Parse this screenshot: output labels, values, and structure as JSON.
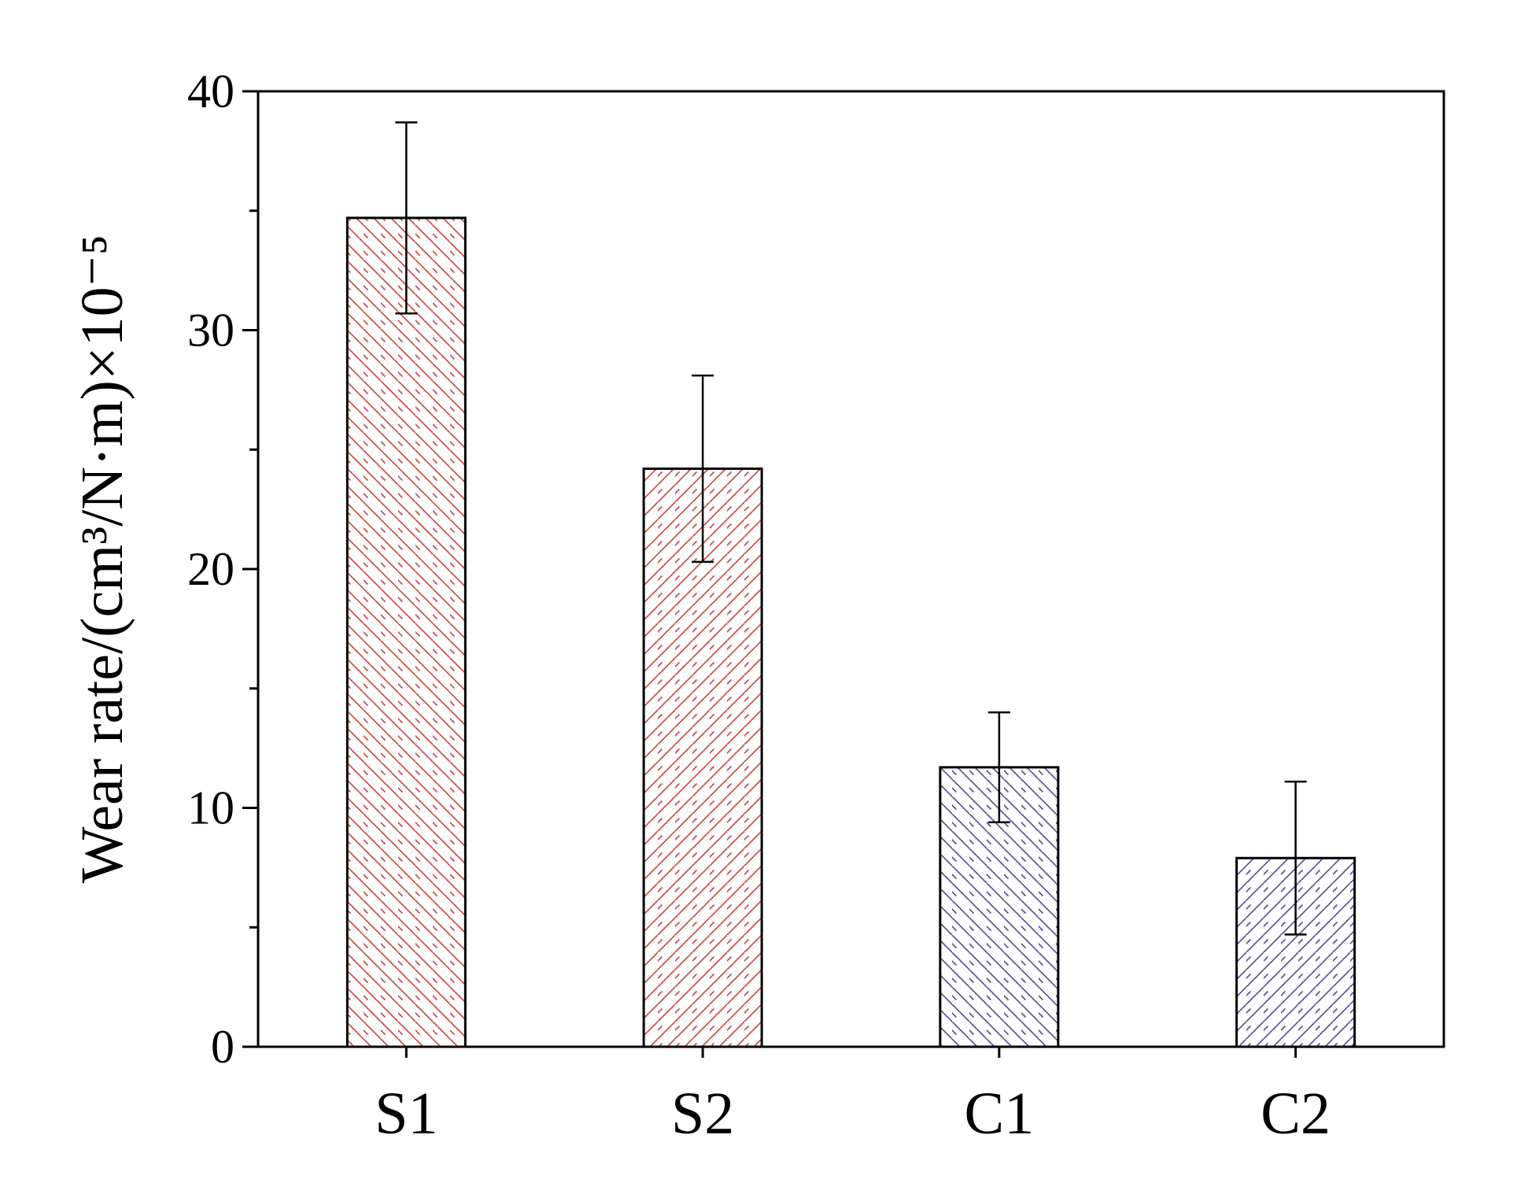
{
  "chart_data": {
    "type": "bar",
    "title": "",
    "xlabel": "",
    "ylabel": "Wear rate/(cm³/N·m)×10⁻⁵",
    "categories": [
      "S1",
      "S2",
      "C1",
      "C2"
    ],
    "values": [
      34.7,
      24.2,
      11.7,
      7.9
    ],
    "errors": [
      4.0,
      3.9,
      2.3,
      3.2
    ],
    "ylim": [
      0,
      40
    ],
    "yticks": [
      0,
      10,
      20,
      30,
      40
    ],
    "grid": false,
    "legend": "none",
    "bar_colors": [
      "#c8453e",
      "#c8453e",
      "#4a4f9a",
      "#4a4f9a"
    ],
    "hatch": [
      "backslash",
      "slash",
      "backslash",
      "slash"
    ]
  }
}
